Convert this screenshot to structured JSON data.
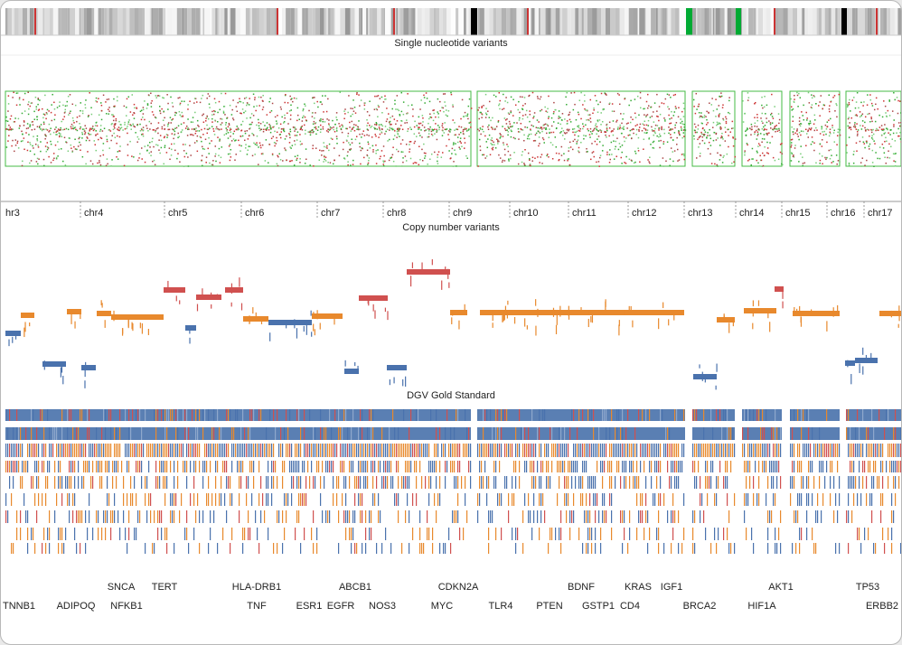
{
  "tracks": {
    "snv": {
      "title": "Single nucleotide variants"
    },
    "cnv": {
      "title": "Copy number variants"
    },
    "dgv": {
      "title": "DGV Gold Standard"
    }
  },
  "chromosomes": [
    {
      "label": "hr3"
    },
    {
      "label": "chr4"
    },
    {
      "label": "chr5"
    },
    {
      "label": "chr6"
    },
    {
      "label": "chr7"
    },
    {
      "label": "chr8"
    },
    {
      "label": "chr9"
    },
    {
      "label": "chr10"
    },
    {
      "label": "chr11"
    },
    {
      "label": "chr12"
    },
    {
      "label": "chr13"
    },
    {
      "label": "chr14"
    },
    {
      "label": "chr15"
    },
    {
      "label": "chr16"
    },
    {
      "label": "chr17"
    }
  ],
  "genes": [
    {
      "label": "SNCA"
    },
    {
      "label": "TERT"
    },
    {
      "label": "HLA-DRB1"
    },
    {
      "label": "ABCB1"
    },
    {
      "label": "CDKN2A"
    },
    {
      "label": "BDNF"
    },
    {
      "label": "KRAS"
    },
    {
      "label": "IGF1"
    },
    {
      "label": "AKT1"
    },
    {
      "label": "TP53"
    },
    {
      "label": "TNNB1"
    },
    {
      "label": "ADIPOQ"
    },
    {
      "label": "NFKB1"
    },
    {
      "label": "TNF"
    },
    {
      "label": "ESR1"
    },
    {
      "label": "EGFR"
    },
    {
      "label": "NOS3"
    },
    {
      "label": "MYC"
    },
    {
      "label": "TLR4"
    },
    {
      "label": "PTEN"
    },
    {
      "label": "GSTP1"
    },
    {
      "label": "CD4"
    },
    {
      "label": "BRCA2"
    },
    {
      "label": "HIF1A"
    },
    {
      "label": "ERBB2"
    }
  ]
}
